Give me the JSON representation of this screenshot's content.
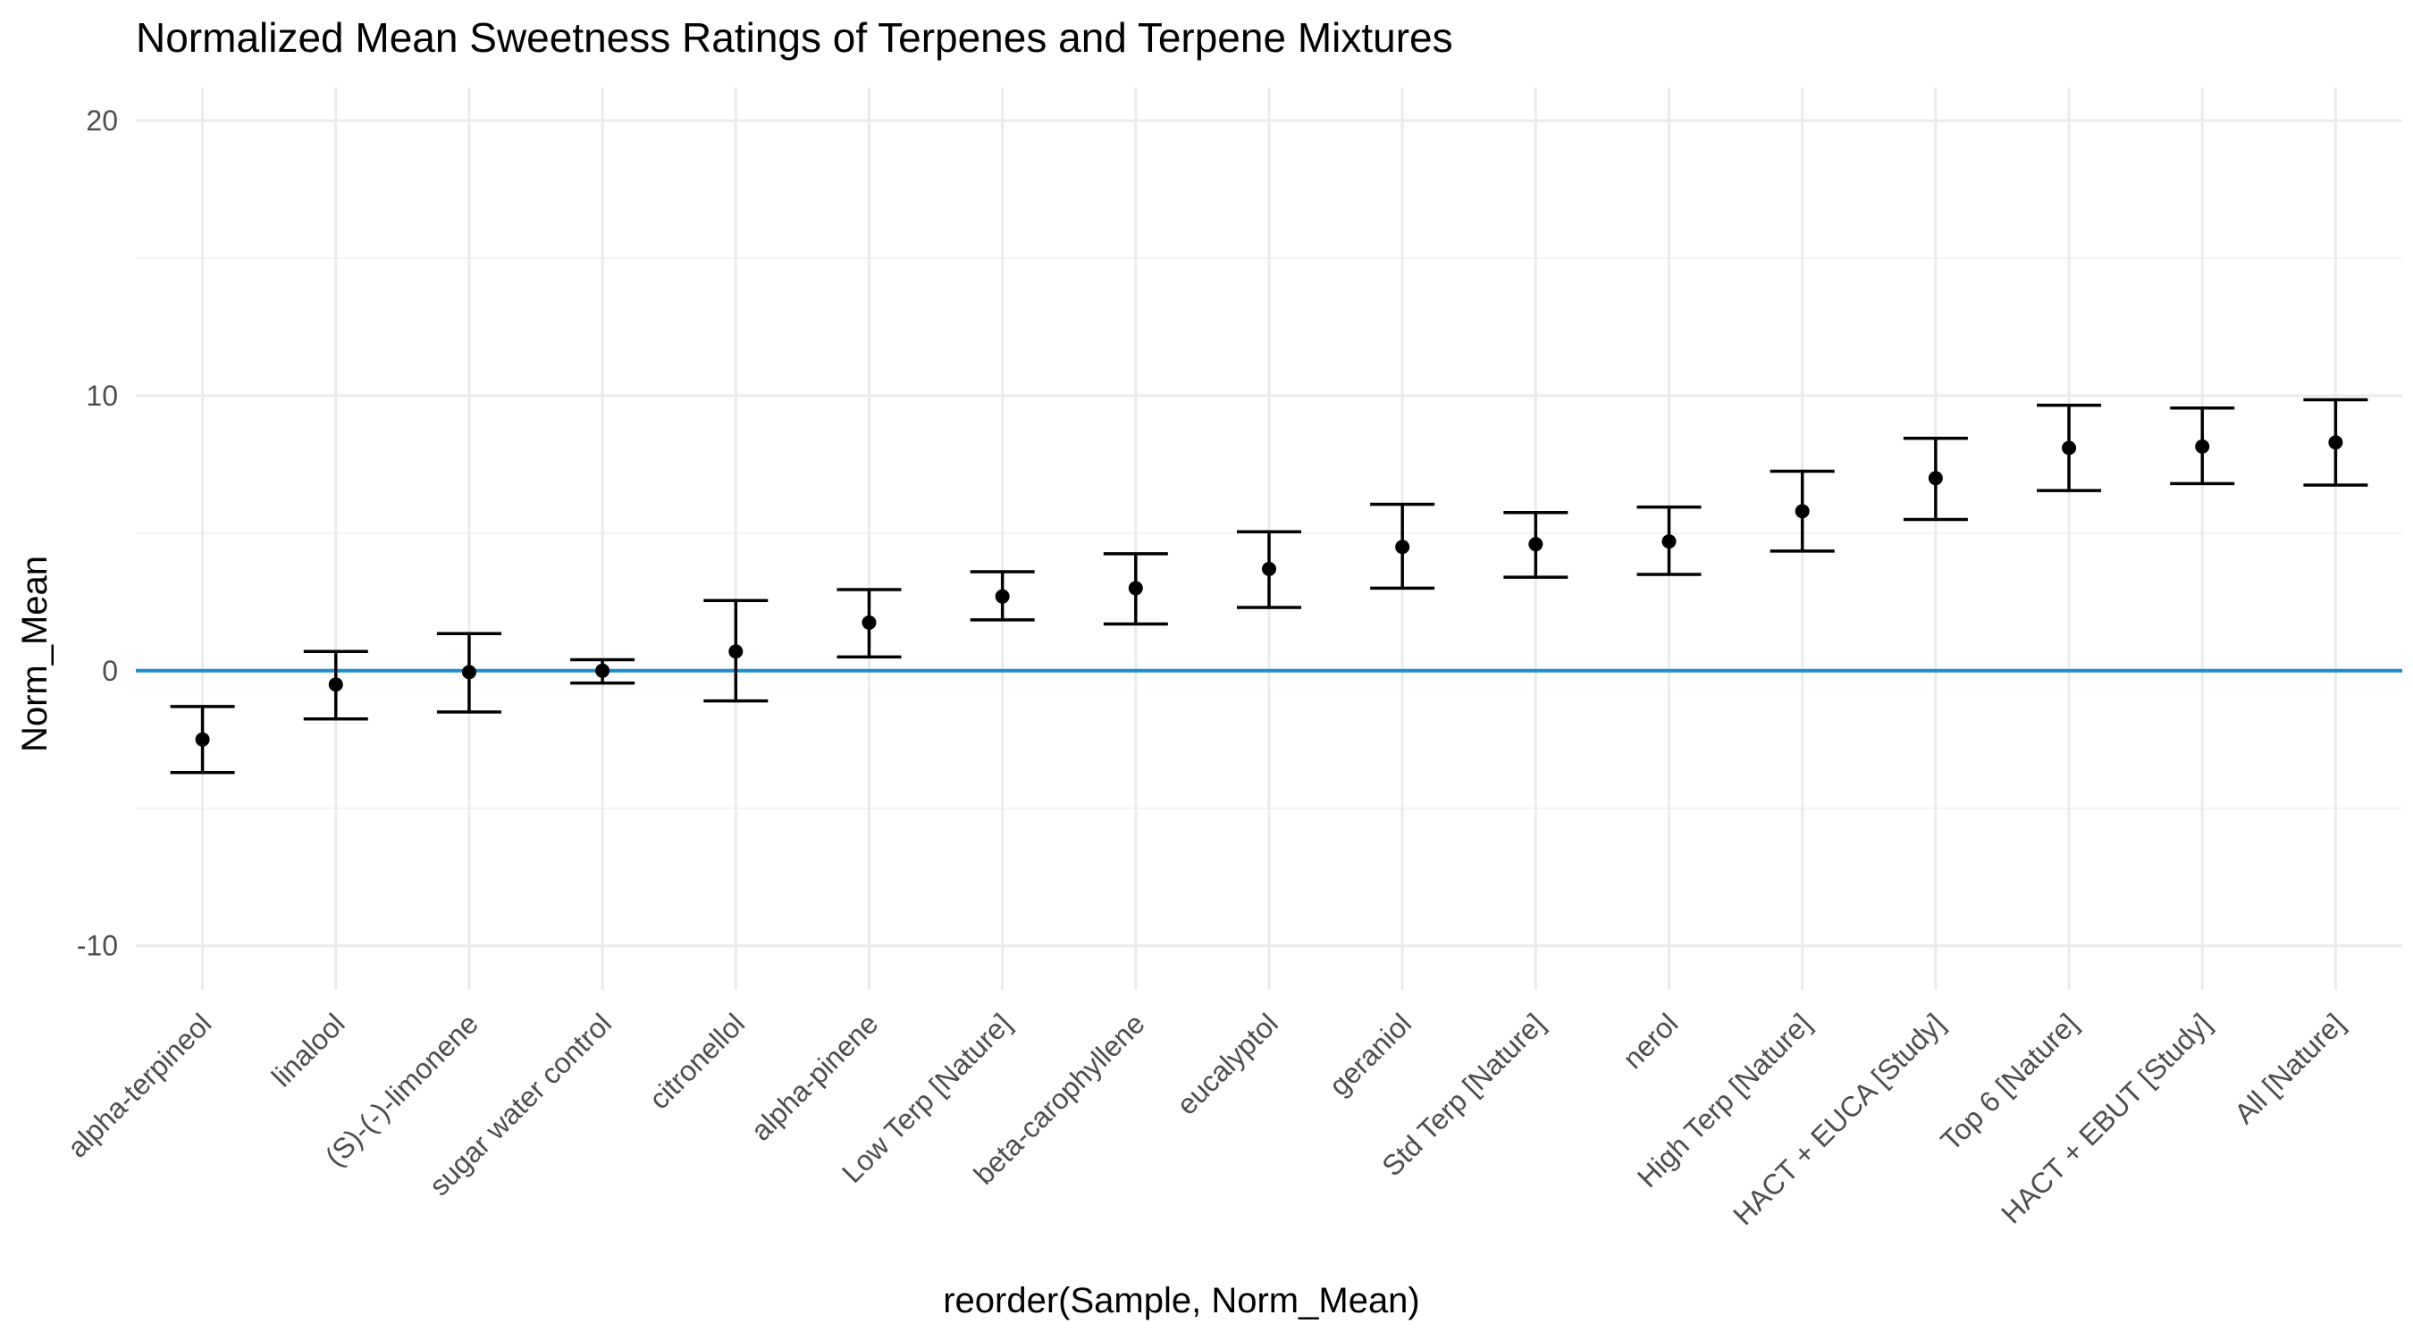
{
  "chart_data": {
    "type": "scatter",
    "title": "Normalized Mean Sweetness Ratings of Terpenes and Terpene Mixtures",
    "xlabel": "reorder(Sample, Norm_Mean)",
    "ylabel": "Norm_Mean",
    "ylim": [
      -11.6,
      21.2
    ],
    "yticks": [
      -10,
      0,
      10,
      20
    ],
    "grid": true,
    "reference_line": {
      "y": 0,
      "color": "#1f8ecf"
    },
    "categories": [
      "alpha-terpineol",
      "linalool",
      "(S)-(-)-limonene",
      "sugar water control",
      "citronellol",
      "alpha-pinene",
      "Low Terp [Nature]",
      "beta-carophyllene",
      "eucalyptol",
      "geraniol",
      "Std Terp [Nature]",
      "nerol",
      "High Terp [Nature]",
      "HACT + EUCA [Study]",
      "Top 6 [Nature]",
      "HACT + EBUT [Study]",
      "All [Nature]"
    ],
    "values": [
      -2.5,
      -0.5,
      -0.05,
      0.0,
      0.7,
      1.75,
      2.7,
      3.0,
      3.7,
      4.5,
      4.6,
      4.7,
      5.8,
      7.0,
      8.1,
      8.15,
      8.3
    ],
    "ymin": [
      -3.7,
      -1.75,
      -1.5,
      -0.45,
      -1.1,
      0.5,
      1.85,
      1.7,
      2.3,
      3.0,
      3.4,
      3.5,
      4.35,
      5.5,
      6.55,
      6.8,
      6.75
    ],
    "ymax": [
      -1.3,
      0.7,
      1.35,
      0.4,
      2.55,
      2.95,
      3.6,
      4.25,
      5.05,
      6.05,
      5.75,
      5.95,
      7.25,
      8.45,
      9.65,
      9.55,
      9.85
    ]
  }
}
